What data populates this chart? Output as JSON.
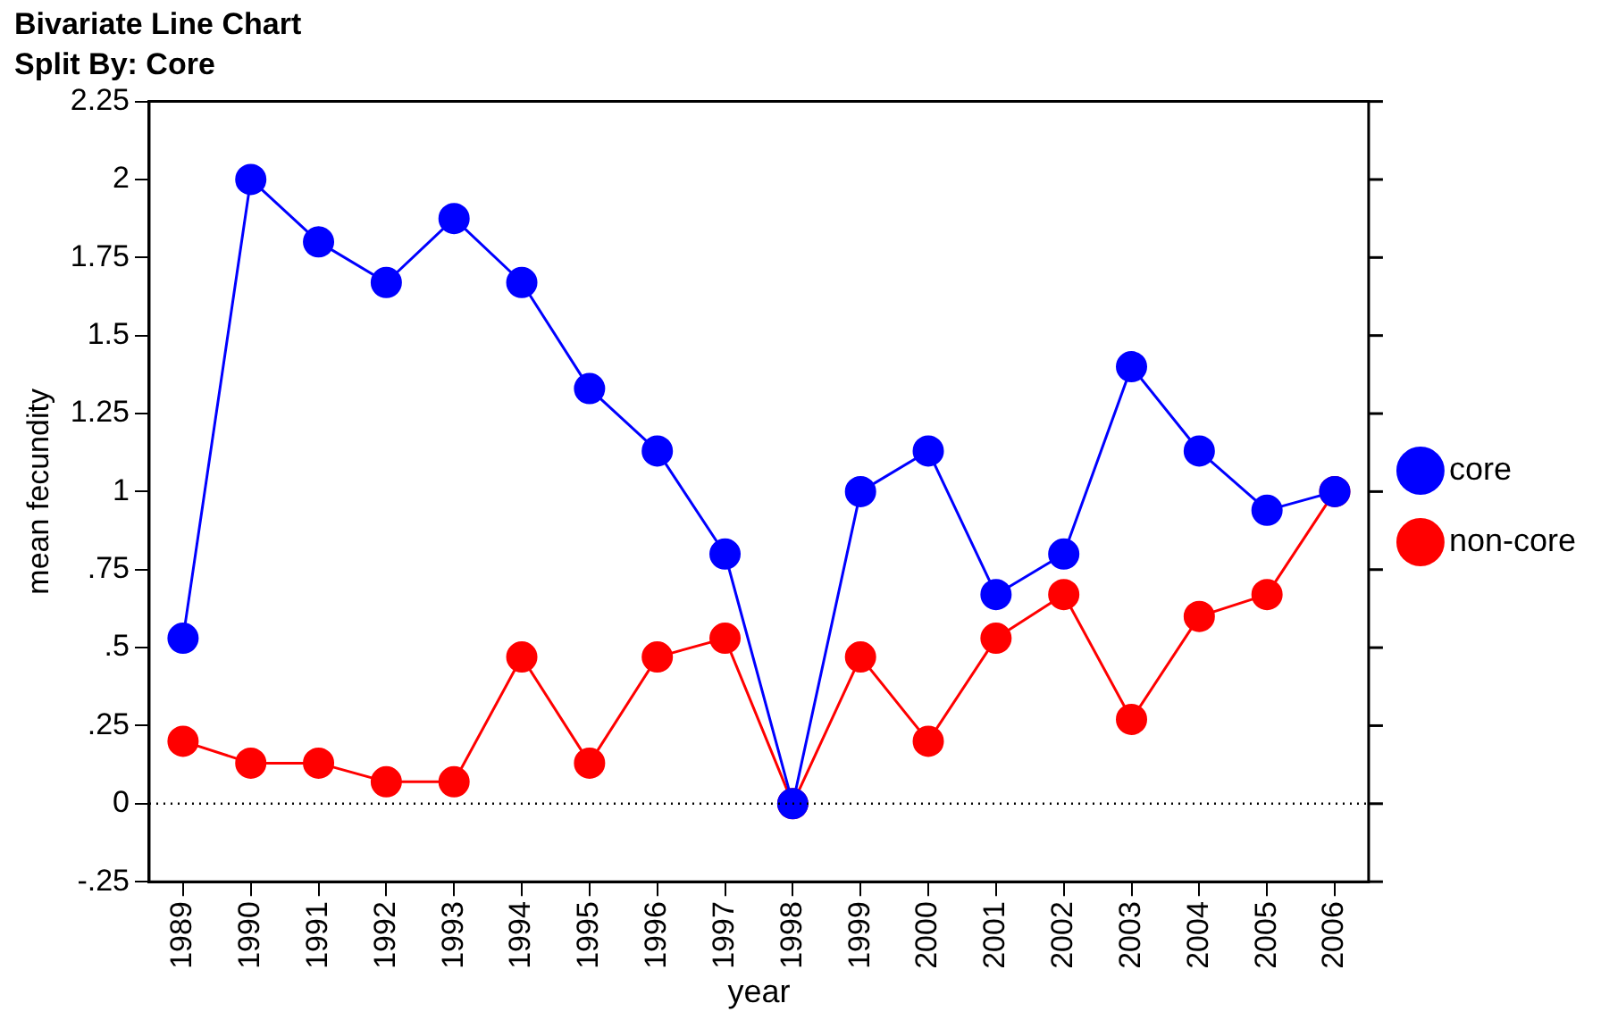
{
  "chart_data": {
    "type": "line",
    "title": "Bivariate Line Chart",
    "subtitle": "Split By: Core",
    "xlabel": "year",
    "ylabel": "mean fecundity",
    "categories": [
      "1989",
      "1990",
      "1991",
      "1992",
      "1993",
      "1994",
      "1995",
      "1996",
      "1997",
      "1998",
      "1999",
      "2000",
      "2001",
      "2002",
      "2003",
      "2004",
      "2005",
      "2006"
    ],
    "series": [
      {
        "name": "core",
        "color": "#0000ff",
        "values": [
          0.53,
          2.0,
          1.8,
          1.67,
          1.875,
          1.67,
          1.33,
          1.13,
          0.8,
          0,
          1.0,
          1.13,
          0.67,
          0.8,
          1.4,
          1.13,
          0.94,
          1.0
        ]
      },
      {
        "name": "non-core",
        "color": "#ff0000",
        "values": [
          0.2,
          0.13,
          0.13,
          0.07,
          0.07,
          0.47,
          0.13,
          0.47,
          0.53,
          0,
          0.47,
          0.2,
          0.53,
          0.67,
          0.27,
          0.6,
          0.67,
          1.0
        ]
      }
    ],
    "ylim": [
      -0.25,
      2.25
    ],
    "yticks": [
      {
        "value": -0.25,
        "label": "-.25"
      },
      0,
      {
        "value": 0.25,
        "label": ".25"
      },
      {
        "value": 0.5,
        "label": ".5"
      },
      {
        "value": 0.75,
        "label": ".75"
      },
      1,
      1.25,
      1.5,
      1.75,
      2,
      2.25
    ],
    "ref_lines": [
      {
        "axis": "y",
        "value": 0,
        "color": "#000000",
        "line_style": "dotted"
      }
    ],
    "grid": false,
    "legend": "right",
    "marker": "circle",
    "line_style": "solid"
  }
}
